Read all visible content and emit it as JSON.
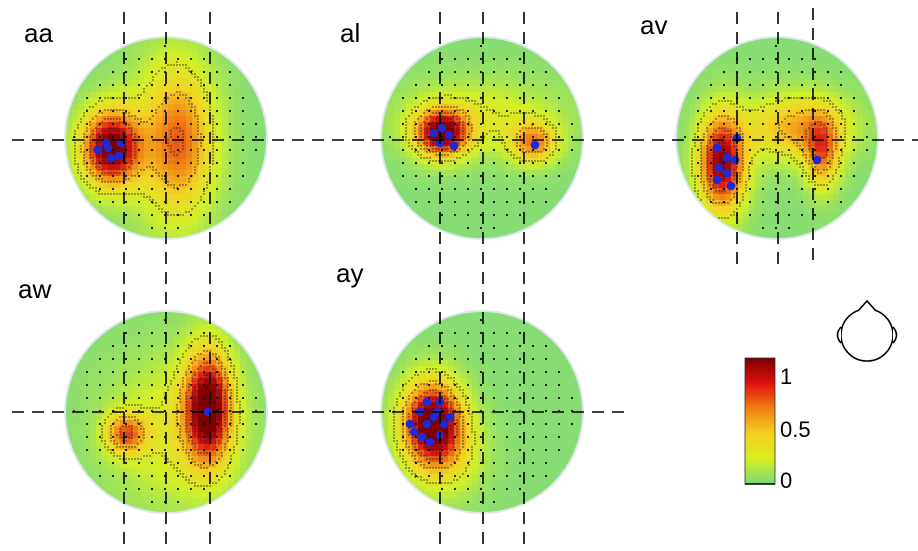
{
  "panels": [
    {
      "label": "aa",
      "peaks": [
        {
          "dx": -0.55,
          "dy": 0.1,
          "amp": 1.0,
          "sx": 0.2,
          "sy": 0.26
        },
        {
          "dx": 0.15,
          "dy": 0.05,
          "amp": 0.38,
          "sx": 0.22,
          "sy": 0.45
        },
        {
          "dx": 0.05,
          "dy": 0.0,
          "amp": 0.25,
          "sx": 0.3,
          "sy": 0.6
        }
      ],
      "electrodes": [
        [
          -0.6,
          0.05
        ],
        [
          -0.45,
          0.05
        ],
        [
          -0.55,
          0.2
        ],
        [
          -0.68,
          0.12
        ],
        [
          -0.47,
          0.18
        ],
        [
          -0.58,
          0.1
        ]
      ]
    },
    {
      "label": "al",
      "peaks": [
        {
          "dx": -0.4,
          "dy": -0.05,
          "amp": 0.95,
          "sx": 0.18,
          "sy": 0.16
        },
        {
          "dx": 0.52,
          "dy": 0.05,
          "amp": 0.5,
          "sx": 0.16,
          "sy": 0.14
        },
        {
          "dx": 0.0,
          "dy": -0.2,
          "amp": 0.2,
          "sx": 0.55,
          "sy": 0.25
        }
      ],
      "electrodes": [
        [
          -0.48,
          -0.05
        ],
        [
          -0.4,
          -0.1
        ],
        [
          -0.33,
          -0.03
        ],
        [
          -0.28,
          0.08
        ],
        [
          -0.42,
          0.05
        ],
        [
          0.53,
          0.07
        ]
      ]
    },
    {
      "label": "av",
      "peaks": [
        {
          "dx": -0.55,
          "dy": 0.25,
          "amp": 0.92,
          "sx": 0.16,
          "sy": 0.33
        },
        {
          "dx": 0.2,
          "dy": -0.1,
          "amp": 0.45,
          "sx": 0.35,
          "sy": 0.22
        },
        {
          "dx": 0.45,
          "dy": 0.15,
          "amp": 0.5,
          "sx": 0.12,
          "sy": 0.25
        }
      ],
      "electrodes": [
        [
          -0.4,
          0.0
        ],
        [
          -0.6,
          0.1
        ],
        [
          -0.5,
          0.2
        ],
        [
          -0.42,
          0.22
        ],
        [
          -0.58,
          0.3
        ],
        [
          -0.5,
          0.35
        ],
        [
          -0.6,
          0.42
        ],
        [
          -0.46,
          0.48
        ],
        [
          0.4,
          0.22
        ]
      ]
    },
    {
      "label": "aw",
      "peaks": [
        {
          "dx": 0.42,
          "dy": -0.05,
          "amp": 0.98,
          "sx": 0.16,
          "sy": 0.38
        },
        {
          "dx": -0.4,
          "dy": 0.22,
          "amp": 0.55,
          "sx": 0.14,
          "sy": 0.14
        },
        {
          "dx": 0.1,
          "dy": 0.2,
          "amp": 0.22,
          "sx": 0.45,
          "sy": 0.5
        }
      ],
      "electrodes": [
        [
          0.42,
          0.0
        ]
      ]
    },
    {
      "label": "ay",
      "peaks": [
        {
          "dx": -0.5,
          "dy": 0.1,
          "amp": 1.0,
          "sx": 0.2,
          "sy": 0.28
        },
        {
          "dx": -0.35,
          "dy": 0.4,
          "amp": 0.25,
          "sx": 0.25,
          "sy": 0.3
        }
      ],
      "electrodes": [
        [
          -0.55,
          -0.1
        ],
        [
          -0.42,
          -0.1
        ],
        [
          -0.62,
          0.0
        ],
        [
          -0.45,
          0.0
        ],
        [
          -0.32,
          0.05
        ],
        [
          -0.55,
          0.12
        ],
        [
          -0.38,
          0.12
        ],
        [
          -0.68,
          0.2
        ],
        [
          -0.6,
          0.25
        ],
        [
          -0.42,
          0.23
        ],
        [
          -0.52,
          0.3
        ],
        [
          -0.72,
          0.12
        ],
        [
          -0.48,
          0.05
        ]
      ]
    }
  ],
  "colorbar": {
    "ticks": [
      "1",
      "0.5",
      "0"
    ],
    "min": 0,
    "max": 1
  },
  "colors": {
    "low": "#6fd98a",
    "mid": "#f0f020",
    "high": "#8b0000",
    "electrode": "#1f2ad6",
    "guide": "#000000"
  }
}
